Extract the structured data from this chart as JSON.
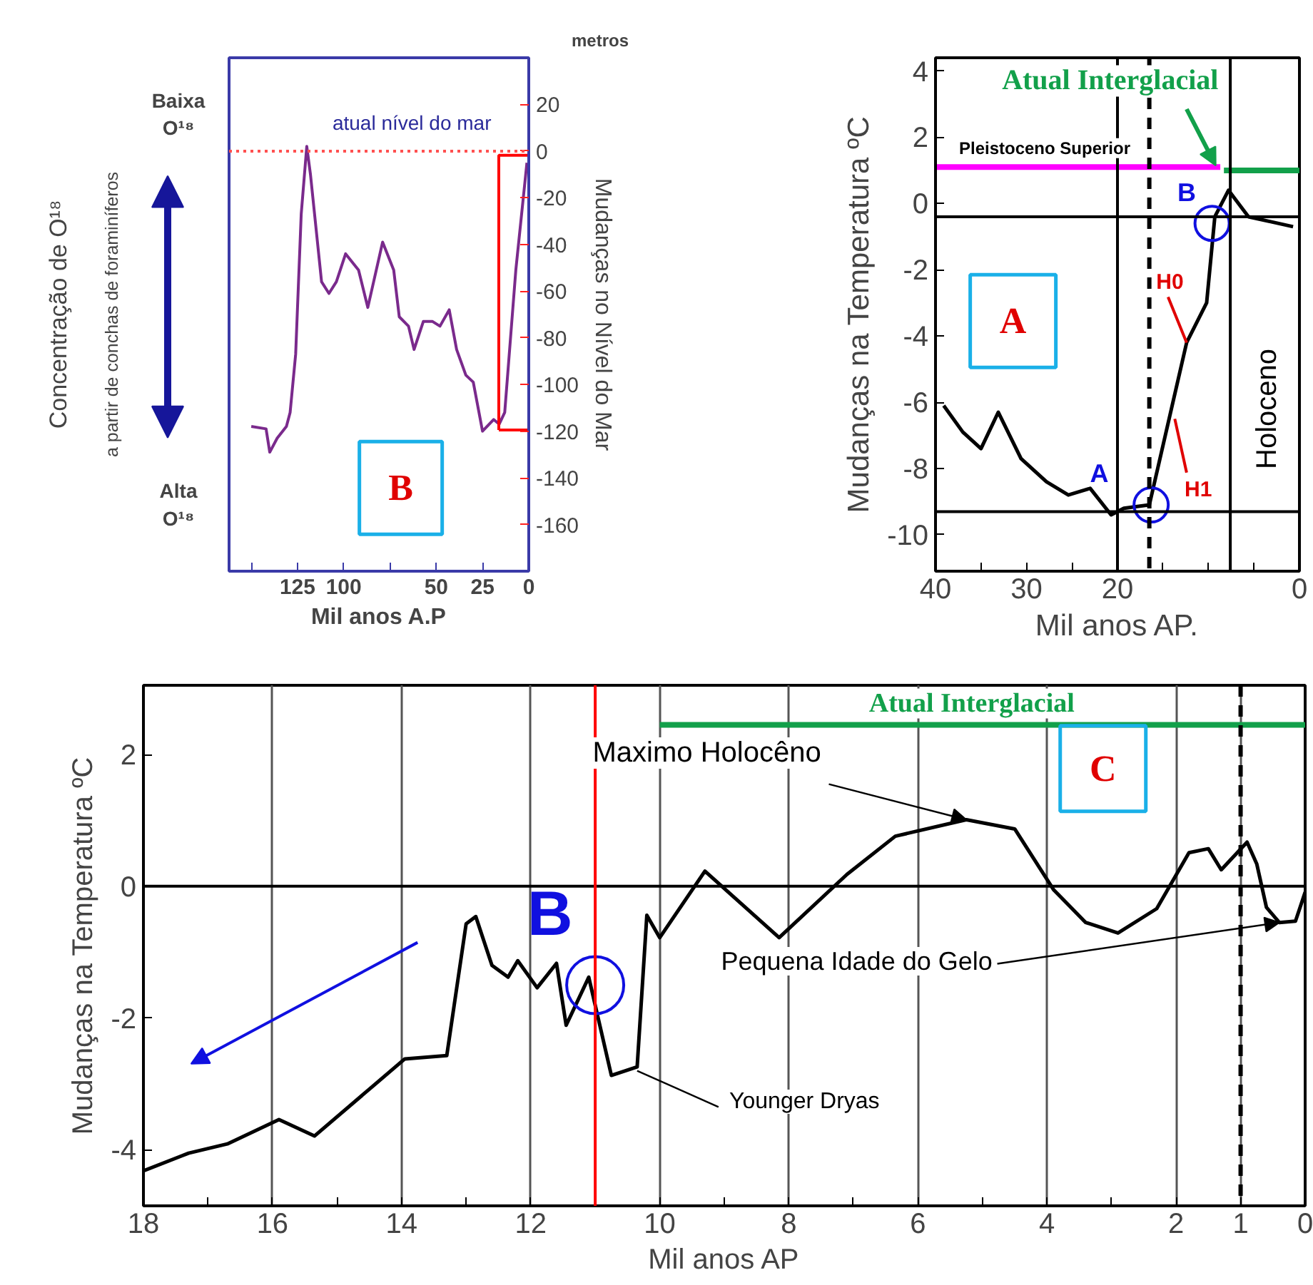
{
  "chart_data": [
    {
      "type": "line",
      "xlabel": "Mil anos A.P",
      "ylabel": "Mudanças no Nível do Mar",
      "xlim": [
        162,
        0
      ],
      "ylim": [
        -180,
        40
      ],
      "xticks": [
        {
          "value": 150,
          "label": null
        },
        125,
        100,
        {
          "value": 75,
          "label": null
        },
        50,
        25,
        0
      ],
      "yticks": [
        20,
        0,
        -20,
        -40,
        -60,
        -80,
        -100,
        -120,
        -140,
        -160
      ],
      "series": [
        {
          "color": "#7a2a8c",
          "x": [
            150,
            142,
            140,
            136,
            131,
            129,
            126,
            123,
            120,
            118,
            112,
            108,
            104,
            99,
            92,
            87,
            79,
            73,
            70,
            65,
            62,
            57,
            52,
            48,
            43,
            39,
            34,
            30,
            25,
            19,
            16,
            13,
            7,
            1
          ],
          "values": [
            -118,
            -119,
            -129,
            -123,
            -118,
            -112,
            -87,
            -27,
            2,
            -10,
            -56,
            -61,
            -56,
            -44,
            -51,
            -67,
            -39,
            -51,
            -71,
            -75,
            -85,
            -73,
            -73,
            -75,
            -68,
            -85,
            -96,
            -99,
            -120,
            -115,
            -117,
            -112,
            -51,
            -5
          ]
        }
      ],
      "ref_lines": [
        {
          "axis": "y",
          "value": 0,
          "label": "atual nível do mar",
          "color": "#ff5050",
          "line_style": "dotted"
        }
      ],
      "annotations": [
        "metros",
        "Concentração de O¹⁸",
        "a partir de conchas de foraminíferos",
        "Baixa\nO¹⁸",
        "Alta\nO¹⁸",
        "B"
      ]
    },
    {
      "type": "line",
      "xlabel": "Mil anos AP.",
      "ylabel": "Mudanças na Temperatura ºC",
      "xlim": [
        40,
        0
      ],
      "ylim": [
        -11.1,
        4.4
      ],
      "xticks": [
        40,
        {
          "value": 35,
          "label": null
        },
        30,
        {
          "value": 25,
          "label": null
        },
        20,
        {
          "value": 15,
          "label": null
        },
        {
          "value": 10,
          "label": null
        },
        {
          "value": 5,
          "label": null
        },
        0
      ],
      "yticks": [
        4,
        2,
        0,
        -2,
        -4,
        -6,
        -8,
        -10
      ],
      "series": [
        {
          "color": "#000000",
          "x": [
            39.1,
            37.0,
            35.0,
            33.1,
            30.6,
            27.8,
            25.4,
            23.0,
            20.7,
            19.3,
            16.5,
            12.4,
            10.2,
            9.3,
            7.8,
            5.6,
            0.7
          ],
          "values": [
            -6.1,
            -6.9,
            -7.4,
            -6.3,
            -7.7,
            -8.4,
            -8.8,
            -8.6,
            -9.4,
            -9.2,
            -9.1,
            -4.2,
            -3.0,
            -0.4,
            0.4,
            -0.4,
            -0.7
          ]
        },
        {
          "name": "Pleistoceno Superior",
          "color": "#ff00ff",
          "x": [
            40,
            8.7
          ],
          "values": [
            1.1,
            1.1
          ]
        },
        {
          "name": "Atual Interglacial",
          "color": "#12a04a",
          "x": [
            8.3,
            0
          ],
          "values": [
            1.0,
            1.0
          ]
        }
      ],
      "ref_lines": [
        {
          "axis": "y",
          "value": -0.4
        },
        {
          "axis": "y",
          "value": -9.3
        },
        {
          "axis": "x",
          "value": 20
        },
        {
          "axis": "x",
          "value": 16.5,
          "line_style": "dashed"
        },
        {
          "axis": "x",
          "value": 7.6
        }
      ],
      "annotations": [
        {
          "text": "H0",
          "x": 12.4,
          "y": -4.2
        },
        {
          "text": "H1",
          "x": 13.7,
          "y": -6.5
        },
        {
          "text": "A",
          "x": 16.3,
          "y": -9.1
        },
        {
          "text": "B",
          "x": 9.6,
          "y": -0.6
        },
        "Holoceno",
        "A"
      ]
    },
    {
      "type": "line",
      "xlabel": "Mil anos AP",
      "ylabel": "Mudanças na Temperatura ºC",
      "xlim": [
        18,
        0
      ],
      "ylim": [
        -4.85,
        3.05
      ],
      "grid": "x",
      "xticks": [
        18,
        {
          "value": 17,
          "label": null
        },
        16,
        {
          "value": 15,
          "label": null
        },
        14,
        {
          "value": 13,
          "label": null
        },
        12,
        {
          "value": 11,
          "label": null
        },
        10,
        {
          "value": 9,
          "label": null
        },
        8,
        {
          "value": 7,
          "label": null
        },
        6,
        {
          "value": 5,
          "label": null
        },
        4,
        {
          "value": 3,
          "label": null
        },
        2,
        1,
        0
      ],
      "yticks": [
        2,
        0,
        -2,
        -4
      ],
      "series": [
        {
          "color": "#000000",
          "x": [
            18.0,
            17.3,
            16.7,
            15.9,
            15.35,
            13.95,
            13.3,
            13.0,
            12.85,
            12.6,
            12.35,
            12.2,
            11.9,
            11.6,
            11.45,
            11.1,
            10.75,
            10.35,
            10.2,
            10.0,
            9.3,
            8.15,
            7.1,
            6.35,
            5.25,
            4.5,
            3.9,
            3.4,
            2.9,
            2.3,
            1.8,
            1.5,
            1.3,
            0.9,
            0.75,
            0.6,
            0.4,
            0.15,
            0.0
          ],
          "values": [
            -4.32,
            -4.05,
            -3.91,
            -3.54,
            -3.79,
            -2.62,
            -2.57,
            -0.57,
            -0.46,
            -1.2,
            -1.38,
            -1.13,
            -1.54,
            -1.17,
            -2.11,
            -1.38,
            -2.87,
            -2.74,
            -0.44,
            -0.78,
            0.23,
            -0.78,
            0.18,
            0.76,
            1.01,
            0.87,
            -0.05,
            -0.55,
            -0.71,
            -0.34,
            0.51,
            0.57,
            0.25,
            0.67,
            0.34,
            -0.32,
            -0.55,
            -0.53,
            -0.09
          ]
        },
        {
          "name": "Atual Interglacial",
          "color": "#12a04a",
          "x": [
            10,
            0
          ],
          "values": [
            2.45,
            2.45
          ]
        }
      ],
      "ref_lines": [
        {
          "axis": "y",
          "value": 0
        },
        {
          "axis": "x",
          "value": 11.0,
          "color": "#ff0000"
        },
        {
          "axis": "x",
          "value": 1,
          "line_style": "dashed"
        }
      ],
      "annotations": [
        {
          "text": "Maximo Holocêno",
          "x": 5.25,
          "y": 1.01
        },
        {
          "text": "Pequena Idade do Gelo",
          "x": 0.4,
          "y": -0.55
        },
        {
          "text": "Younger Dryas",
          "x": 10.35,
          "y": -2.8
        },
        {
          "text": "B",
          "x": 11.0,
          "y": -1.5
        },
        "C"
      ]
    }
  ]
}
